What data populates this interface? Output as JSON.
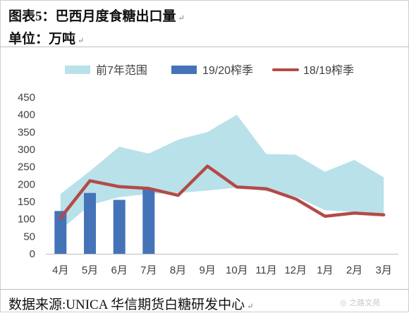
{
  "header": {
    "title": "图表5：巴西月度食糖出口量",
    "unit": "单位：万吨",
    "return_mark": "↵"
  },
  "footer": {
    "source": "数据来源:UNICA 华信期货白糖研发中心",
    "watermark": "◎ 之路文苑"
  },
  "colors": {
    "band": "#b9e1ea",
    "bar": "#4573b8",
    "line": "#b44a47",
    "axis": "#bfbfbf",
    "text": "#404040"
  },
  "chart_data": {
    "type": "bar",
    "categories": [
      "4月",
      "5月",
      "6月",
      "7月",
      "8月",
      "9月",
      "10月",
      "11月",
      "12月",
      "1月",
      "2月",
      "3月"
    ],
    "ylim": [
      0,
      450
    ],
    "yticks": [
      0,
      50,
      100,
      150,
      200,
      250,
      300,
      350,
      400,
      450
    ],
    "legend": [
      "前7年范围",
      "19/20榨季",
      "18/19榨季"
    ],
    "range_band": {
      "name": "前7年范围",
      "high": [
        172,
        238,
        308,
        288,
        328,
        350,
        400,
        287,
        285,
        236,
        270,
        220
      ],
      "low": [
        68,
        140,
        163,
        172,
        175,
        182,
        190,
        180,
        165,
        125,
        120,
        112
      ]
    },
    "series": [
      {
        "name": "19/20榨季",
        "type": "bar",
        "values": [
          123,
          175,
          155,
          185,
          null,
          null,
          null,
          null,
          null,
          null,
          null,
          null
        ]
      },
      {
        "name": "18/19榨季",
        "type": "line",
        "values": [
          103,
          210,
          193,
          188,
          168,
          252,
          192,
          187,
          158,
          108,
          117,
          112
        ]
      }
    ]
  }
}
